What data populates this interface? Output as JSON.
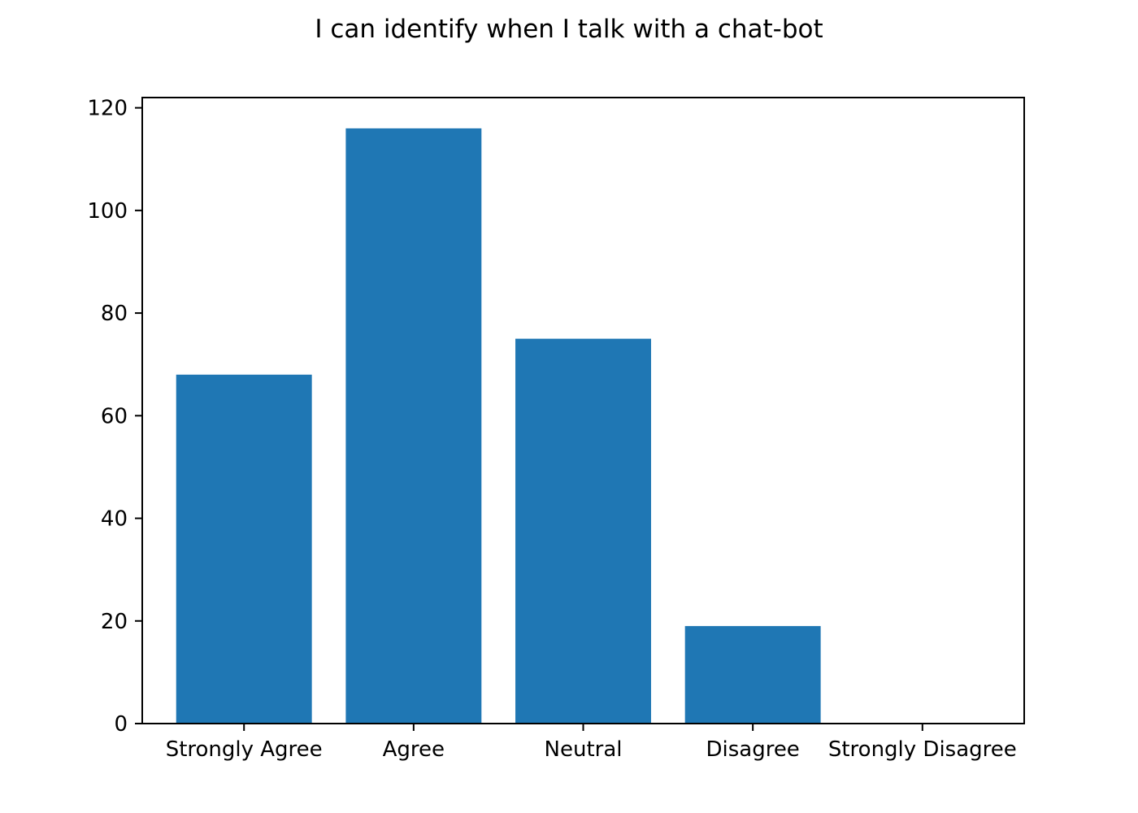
{
  "chart_data": {
    "type": "bar",
    "title": "I can identify when I talk with a chat-bot",
    "xlabel": "",
    "ylabel": "",
    "categories": [
      "Strongly Agree",
      "Agree",
      "Neutral",
      "Disagree",
      "Strongly Disagree"
    ],
    "values": [
      68,
      116,
      75,
      19,
      0
    ],
    "ylim": [
      0,
      122
    ],
    "yticks": [
      0,
      20,
      40,
      60,
      80,
      100,
      120
    ],
    "ytick_labels": [
      "0",
      "20",
      "40",
      "60",
      "80",
      "100",
      "120"
    ],
    "grid": false,
    "legend": "none",
    "bar_color": "#1f77b4"
  }
}
